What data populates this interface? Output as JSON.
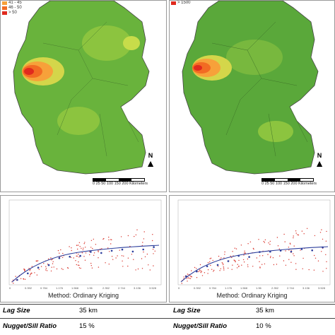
{
  "left_map": {
    "legend": [
      {
        "label": "41 - 45",
        "color": "#f7a13a"
      },
      {
        "label": "46 - 50",
        "color": "#f26b23"
      },
      {
        "label": "> 50",
        "color": "#e02a1e"
      }
    ],
    "scale_labels": [
      "0",
      "25",
      "50",
      "100",
      "150",
      "200"
    ],
    "scale_unit": "Kilometers",
    "north": "N"
  },
  "right_map": {
    "legend": [
      {
        "label": "> 1500",
        "color": "#e02a1e"
      }
    ],
    "scale_labels": [
      "0",
      "25",
      "50",
      "100",
      "150",
      "200"
    ],
    "scale_unit": "Kilometers",
    "north": "N"
  },
  "left_variogram": {
    "method": "Method: Ordinary Kriging",
    "x_ticks": [
      "0",
      "0.392",
      "0.784",
      "1.176",
      "1.568",
      "1.96",
      "2.352",
      "2.744",
      "3.136",
      "3.528",
      "3.92"
    ]
  },
  "right_variogram": {
    "method": "Method: Ordinary Kriging",
    "x_ticks": [
      "0",
      "0.392",
      "0.784",
      "1.176",
      "1.568",
      "1.96",
      "2.352",
      "2.744",
      "3.136",
      "3.528",
      "3.92"
    ]
  },
  "stats": {
    "lag_label": "Lag Size",
    "lag_left": "35 km",
    "lag_right": "35 km",
    "nugget_label": "Nugget/Sill Ratio",
    "nugget_left": "15 %",
    "nugget_right": "10 %"
  },
  "colors": {
    "land_green": "#5fb03a",
    "land_light": "#a8cf45",
    "hotspot": "#e02a1e"
  }
}
